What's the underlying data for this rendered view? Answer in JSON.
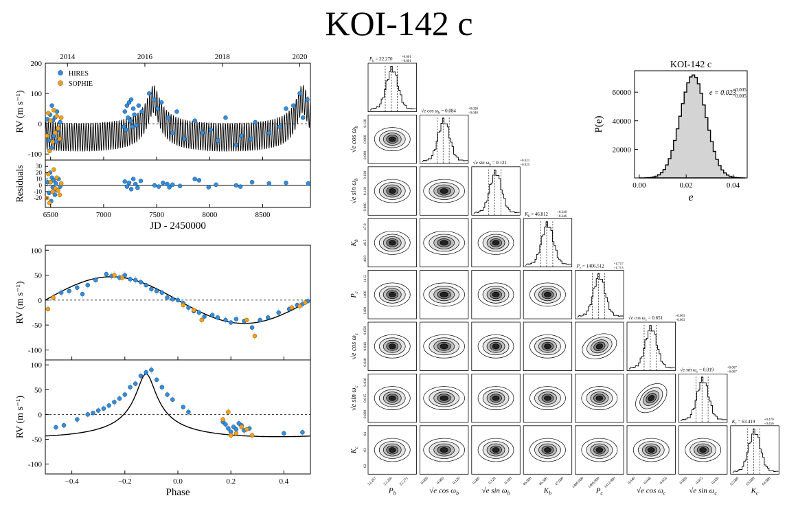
{
  "title": "KOI-142 c",
  "colors": {
    "hires": "#2f8fe0",
    "sophie": "#f5a11d",
    "model": "#000000",
    "hist_fill": "#d4d4d4"
  },
  "chart_data": [
    {
      "type": "line",
      "name": "rv-timeseries",
      "xlabel": "JD - 2450000",
      "ylabel": "RV (m s⁻¹)",
      "xlim": [
        6450,
        8950
      ],
      "ylim": [
        -120,
        200
      ],
      "xticks": [
        6500,
        7000,
        7500,
        8000,
        8500
      ],
      "yticks": [
        -100,
        0,
        100,
        200
      ],
      "top_axis": {
        "labels": [
          "2014",
          "2016",
          "2018",
          "2020"
        ],
        "jd": [
          6659,
          7389,
          8119,
          8850
        ]
      },
      "legend": [
        {
          "label": "HIRES",
          "color": "#2f8fe0"
        },
        {
          "label": "SOPHIE",
          "color": "#f5a11d"
        }
      ],
      "model": {
        "outer_period": 1406.5,
        "outer_K": 63.4,
        "outer_e": 0.651,
        "outer_peak": 7470,
        "inner_period": 22.27,
        "inner_K": 46.8
      },
      "hires": [
        [
          6470,
          15
        ],
        [
          6485,
          -55
        ],
        [
          6495,
          30
        ],
        [
          6505,
          -80
        ],
        [
          6512,
          60
        ],
        [
          6520,
          10
        ],
        [
          6530,
          -40
        ],
        [
          6540,
          20
        ],
        [
          6550,
          -60
        ],
        [
          6560,
          40
        ],
        [
          6575,
          -20
        ],
        [
          6590,
          5
        ],
        [
          7190,
          -10
        ],
        [
          7200,
          40
        ],
        [
          7210,
          -20
        ],
        [
          7220,
          60
        ],
        [
          7230,
          20
        ],
        [
          7240,
          70
        ],
        [
          7250,
          10
        ],
        [
          7260,
          80
        ],
        [
          7270,
          -10
        ],
        [
          7280,
          50
        ],
        [
          7290,
          30
        ],
        [
          7310,
          -5
        ],
        [
          7330,
          60
        ],
        [
          7360,
          40
        ],
        [
          7430,
          100
        ],
        [
          7480,
          80
        ],
        [
          7510,
          50
        ],
        [
          7545,
          70
        ],
        [
          7610,
          20
        ],
        [
          7650,
          -30
        ],
        [
          7690,
          40
        ],
        [
          7760,
          -50
        ],
        [
          7860,
          10
        ],
        [
          7930,
          -30
        ],
        [
          8010,
          -20
        ],
        [
          8080,
          -55
        ],
        [
          8150,
          20
        ],
        [
          8250,
          -70
        ],
        [
          8300,
          -40
        ],
        [
          8390,
          -50
        ],
        [
          8430,
          5
        ],
        [
          8560,
          -30
        ],
        [
          8660,
          -10
        ],
        [
          8720,
          50
        ],
        [
          8790,
          60
        ],
        [
          8850,
          100
        ],
        [
          8880,
          20
        ],
        [
          8920,
          80
        ]
      ],
      "sophie": [
        [
          6465,
          -40
        ],
        [
          6478,
          35
        ],
        [
          6490,
          -90
        ],
        [
          6500,
          10
        ],
        [
          6518,
          -60
        ],
        [
          6530,
          45
        ],
        [
          6545,
          -30
        ],
        [
          6558,
          25
        ],
        [
          6570,
          -15
        ],
        [
          6585,
          -50
        ],
        [
          6600,
          20
        ]
      ]
    },
    {
      "type": "scatter",
      "name": "residuals",
      "ylabel": "Residuals",
      "xlim": [
        6450,
        8950
      ],
      "ylim": [
        -35,
        40
      ],
      "yticks": [
        -20,
        -10,
        0,
        10,
        20,
        30
      ],
      "hires": [
        [
          6470,
          5
        ],
        [
          6485,
          -12
        ],
        [
          6495,
          20
        ],
        [
          6505,
          -25
        ],
        [
          6512,
          12
        ],
        [
          6520,
          -3
        ],
        [
          6530,
          8
        ],
        [
          6540,
          -15
        ],
        [
          6550,
          3
        ],
        [
          6560,
          -8
        ],
        [
          6575,
          10
        ],
        [
          6590,
          -2
        ],
        [
          7200,
          6
        ],
        [
          7220,
          -2
        ],
        [
          7240,
          4
        ],
        [
          7260,
          -6
        ],
        [
          7280,
          10
        ],
        [
          7300,
          2
        ],
        [
          7320,
          -4
        ],
        [
          7350,
          7
        ],
        [
          7480,
          0
        ],
        [
          7520,
          -2
        ],
        [
          7560,
          4
        ],
        [
          7600,
          2
        ],
        [
          7620,
          -3
        ],
        [
          7650,
          1
        ],
        [
          7720,
          -1
        ],
        [
          7860,
          10
        ],
        [
          7900,
          8
        ],
        [
          7990,
          -3
        ],
        [
          8060,
          1
        ],
        [
          8250,
          0
        ],
        [
          8290,
          -2
        ],
        [
          8400,
          5
        ],
        [
          8560,
          3
        ],
        [
          8720,
          4
        ],
        [
          8930,
          3
        ]
      ],
      "sophie": [
        [
          6465,
          -20
        ],
        [
          6478,
          18
        ],
        [
          6490,
          -28
        ],
        [
          6500,
          5
        ],
        [
          6518,
          -10
        ],
        [
          6530,
          25
        ],
        [
          6545,
          -5
        ],
        [
          6558,
          12
        ],
        [
          6570,
          -8
        ],
        [
          6585,
          -15
        ],
        [
          6600,
          3
        ]
      ]
    },
    {
      "type": "scatter",
      "name": "phase-inner",
      "xlabel": "Phase",
      "ylabel": "RV (m s⁻¹)",
      "xlim": [
        -0.5,
        0.5
      ],
      "ylim": [
        -120,
        110
      ],
      "yticks": [
        -100,
        -50,
        0,
        50,
        100
      ],
      "xticks": [
        -0.4,
        -0.2,
        0.0,
        0.2,
        0.4
      ],
      "model": {
        "K": 46.8,
        "peak_phase": -0.25
      },
      "hires": [
        [
          -0.44,
          15
        ],
        [
          -0.41,
          18
        ],
        [
          -0.38,
          25
        ],
        [
          -0.36,
          12
        ],
        [
          -0.34,
          30
        ],
        [
          -0.31,
          40
        ],
        [
          -0.27,
          52
        ],
        [
          -0.25,
          48
        ],
        [
          -0.22,
          45
        ],
        [
          -0.2,
          50
        ],
        [
          -0.18,
          42
        ],
        [
          -0.16,
          40
        ],
        [
          -0.14,
          36
        ],
        [
          -0.12,
          30
        ],
        [
          -0.1,
          22
        ],
        [
          -0.08,
          18
        ],
        [
          -0.06,
          15
        ],
        [
          -0.04,
          5
        ],
        [
          -0.02,
          2
        ],
        [
          0.0,
          0
        ],
        [
          0.02,
          -6
        ],
        [
          0.04,
          -15
        ],
        [
          0.06,
          -22
        ],
        [
          0.08,
          -25
        ],
        [
          0.1,
          -33
        ],
        [
          0.13,
          -30
        ],
        [
          0.15,
          -35
        ],
        [
          0.18,
          -40
        ],
        [
          0.2,
          -45
        ],
        [
          0.22,
          -38
        ],
        [
          0.25,
          -42
        ],
        [
          0.28,
          -55
        ],
        [
          0.31,
          -40
        ],
        [
          0.34,
          -35
        ],
        [
          0.38,
          -25
        ],
        [
          0.42,
          -18
        ],
        [
          0.45,
          -10
        ],
        [
          0.47,
          -8
        ],
        [
          0.49,
          -2
        ]
      ],
      "sophie": [
        [
          -0.49,
          -18
        ],
        [
          -0.47,
          5
        ],
        [
          -0.24,
          50
        ],
        [
          -0.21,
          45
        ],
        [
          0.02,
          -10
        ],
        [
          0.06,
          -20
        ],
        [
          0.09,
          -40
        ],
        [
          0.26,
          -40
        ],
        [
          0.29,
          -72
        ],
        [
          0.43,
          -15
        ],
        [
          0.46,
          -12
        ],
        [
          0.48,
          -5
        ]
      ]
    },
    {
      "type": "scatter",
      "name": "phase-outer",
      "xlabel": "Phase",
      "ylabel": "RV (m s⁻¹)",
      "xlim": [
        -0.5,
        0.5
      ],
      "ylim": [
        -120,
        110
      ],
      "yticks": [
        -100,
        -50,
        0,
        50,
        100
      ],
      "xticks": [
        -0.4,
        -0.2,
        0.0,
        0.2,
        0.4
      ],
      "model": {
        "K": 63.4,
        "e": 0.651,
        "peak_phase": -0.12
      },
      "hires": [
        [
          -0.46,
          -26
        ],
        [
          -0.43,
          -22
        ],
        [
          -0.38,
          -10
        ],
        [
          -0.34,
          0
        ],
        [
          -0.32,
          3
        ],
        [
          -0.3,
          8
        ],
        [
          -0.28,
          12
        ],
        [
          -0.26,
          18
        ],
        [
          -0.24,
          25
        ],
        [
          -0.22,
          32
        ],
        [
          -0.2,
          40
        ],
        [
          -0.18,
          55
        ],
        [
          -0.16,
          62
        ],
        [
          -0.14,
          78
        ],
        [
          -0.12,
          85
        ],
        [
          -0.1,
          90
        ],
        [
          -0.08,
          70
        ],
        [
          -0.06,
          55
        ],
        [
          -0.04,
          40
        ],
        [
          -0.02,
          30
        ],
        [
          0.02,
          15
        ],
        [
          0.04,
          5
        ],
        [
          0.17,
          -15
        ],
        [
          0.18,
          -20
        ],
        [
          0.19,
          -28
        ],
        [
          0.2,
          -35
        ],
        [
          0.21,
          -25
        ],
        [
          0.22,
          -30
        ],
        [
          0.23,
          -18
        ],
        [
          0.24,
          -22
        ],
        [
          0.25,
          -32
        ],
        [
          0.27,
          -28
        ],
        [
          0.4,
          -38
        ],
        [
          0.47,
          -36
        ]
      ],
      "sophie": [
        [
          0.17,
          -10
        ],
        [
          0.19,
          5
        ],
        [
          0.2,
          -42
        ],
        [
          0.22,
          -38
        ],
        [
          0.24,
          -25
        ],
        [
          0.26,
          -30
        ],
        [
          0.28,
          -42
        ]
      ]
    },
    {
      "type": "histogram",
      "name": "eccentricity-posterior",
      "title": "KOI-142 c",
      "xlabel": "e",
      "ylabel": "P(e)",
      "xlim": [
        -0.002,
        0.046
      ],
      "ylim": [
        0,
        75000
      ],
      "xticks": [
        0.0,
        0.02,
        0.04
      ],
      "xticklabels": [
        "0.00",
        "0.02",
        "0.04"
      ],
      "yticks": [
        20000,
        40000,
        60000
      ],
      "mean": 0.023,
      "sigma": 0.0055,
      "peak": 72000,
      "annotation": {
        "base": "e = 0.023",
        "sup": "+0.005",
        "sub": "−0.005"
      }
    },
    {
      "type": "corner",
      "name": "corner-plot",
      "params": [
        {
          "sym": "P",
          "sub": "b",
          "label": "P_b",
          "val": "22.270",
          "up": "+0.001",
          "lo": "−0.001",
          "ticks": [
            "22.267",
            "22.269",
            "22.271"
          ]
        },
        {
          "sym": "√e cos ω",
          "sub": "b",
          "label": "sqrt(e) cos w_b",
          "val": "0.084",
          "up": "+0.028",
          "lo": "−0.040",
          "ticks": [
            "0.000",
            "0.060",
            "0.120"
          ]
        },
        {
          "sym": "√e sin ω",
          "sub": "b",
          "label": "sqrt(e) sin w_b",
          "val": "0.121",
          "up": "+0.021",
          "lo": "−0.025",
          "ticks": [
            "0.060",
            "0.120",
            "0.180"
          ]
        },
        {
          "sym": "K",
          "sub": "b",
          "label": "K_b",
          "val": "46.812",
          "up": "+0.246",
          "lo": "−0.246",
          "ticks": [
            "46.000",
            "46.500",
            "47.000"
          ]
        },
        {
          "sym": "P",
          "sub": "c",
          "label": "P_c",
          "val": "1406.512",
          "up": "+1.717",
          "lo": "−1.713",
          "ticks": [
            "1400.000",
            "1406.000",
            "1412.000"
          ]
        },
        {
          "sym": "√e cos ω",
          "sub": "c",
          "label": "sqrt(e) cos w_c",
          "val": "0.651",
          "up": "+0.003",
          "lo": "−0.003",
          "ticks": [
            "0.640",
            "0.648",
            "0.656"
          ]
        },
        {
          "sym": "√e sin ω",
          "sub": "c",
          "label": "sqrt(e) sin w_c",
          "val": "0.019",
          "up": "+0.007",
          "lo": "−0.007",
          "ticks": [
            "0.000",
            "0.015",
            "0.030"
          ]
        },
        {
          "sym": "K",
          "sub": "c",
          "label": "K_c",
          "val": "63.419",
          "up": "+0.470",
          "lo": "−0.456",
          "ticks": [
            "62.000",
            "63.000",
            "64.000"
          ]
        }
      ],
      "row_ticks": [
        [],
        [
          "0.120",
          "0.060",
          "0.000"
        ],
        [
          "0.180",
          "0.120",
          "0.060"
        ],
        [
          "47.0",
          "46.5",
          "46.0"
        ],
        [
          "1412",
          "1406",
          "1400"
        ],
        [
          "0.656",
          "0.648",
          "0.640"
        ],
        [
          "0.030",
          "0.015",
          "0.000"
        ],
        [
          "64",
          "63",
          "62"
        ]
      ]
    }
  ]
}
